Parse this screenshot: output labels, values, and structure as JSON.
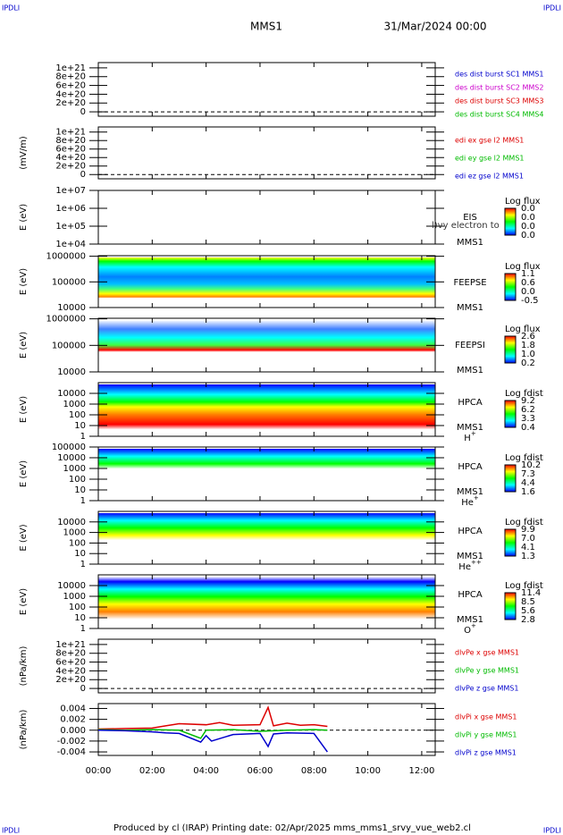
{
  "header": {
    "corner_left": "IPDLI",
    "corner_right": "IPDLI",
    "spacecraft": "MMS1",
    "date": "31/Mar/2024 00:00"
  },
  "footer": {
    "corner_left": "IPDLI",
    "corner_right": "IPDLI",
    "text": "Produced by cl (IRAP)   Printing date: 02/Apr/2025   mms_mms1_srvy_vue_web2.cl"
  },
  "xaxis": {
    "xlim": [
      0,
      12.5
    ],
    "xticks": [
      {
        "value": 0,
        "label": "00:00"
      },
      {
        "value": 2,
        "label": "02:00"
      },
      {
        "value": 4,
        "label": "04:00"
      },
      {
        "value": 6,
        "label": "06:00"
      },
      {
        "value": 8,
        "label": "08:00"
      },
      {
        "value": 10,
        "label": "10:00"
      },
      {
        "value": 12,
        "label": "12:00"
      }
    ]
  },
  "chart_data": [
    {
      "type": "line",
      "ylim": [
        -1e+20,
        1.12e+21
      ],
      "yticks": [
        {
          "value": 1e+21,
          "label": "1e+21"
        },
        {
          "value": 8e+20,
          "label": "8e+20"
        },
        {
          "value": 6e+20,
          "label": "6e+20"
        },
        {
          "value": 4e+20,
          "label": "4e+20"
        },
        {
          "value": 2e+20,
          "label": "2e+20"
        },
        0
      ],
      "legend": [
        {
          "name": "des dist burst SC1 MMS1",
          "color": "#0000cc"
        },
        {
          "name": "des dist burst SC2 MMS2",
          "color": "#cc00cc"
        },
        {
          "name": "des dist burst SC3 MMS3",
          "color": "#dd0000"
        },
        {
          "name": "des dist burst SC4 MMS4",
          "color": "#00bb00"
        }
      ]
    },
    {
      "type": "line",
      "ylabel": "(mV/m)",
      "ylim": [
        -1e+20,
        1.12e+21
      ],
      "yticks": [
        {
          "value": 1e+21,
          "label": "1e+21"
        },
        {
          "value": 8e+20,
          "label": "8e+20"
        },
        {
          "value": 6e+20,
          "label": "6e+20"
        },
        {
          "value": 4e+20,
          "label": "4e+20"
        },
        {
          "value": 2e+20,
          "label": "2e+20"
        },
        0
      ],
      "legend": [
        {
          "name": "edi ex gse l2 MMS1",
          "color": "#dd0000"
        },
        {
          "name": "edi ey gse l2 MMS1",
          "color": "#00bb00"
        },
        {
          "name": "edi ez gse l2 MMS1",
          "color": "#0000cc"
        }
      ]
    },
    {
      "type": "spectrogram",
      "ylabel": "E (eV)",
      "log": true,
      "ylim": [
        10000.0,
        10000000.0
      ],
      "yticks": [
        {
          "value": 10000000.0,
          "label": "1e+07"
        },
        {
          "value": 1000000.0,
          "label": "1e+06"
        },
        {
          "value": 100000.0,
          "label": "1e+05"
        },
        {
          "value": 10000.0,
          "label": "1e+04"
        }
      ],
      "labels": [
        "EIS",
        "MMS1"
      ],
      "overlay": "l)vy electron to",
      "colorbar": {
        "title": "Log flux",
        "labels": [
          "0.0",
          "0.0",
          "0.0",
          "0.0"
        ]
      }
    },
    {
      "type": "spectrogram",
      "ylabel": "E (eV)",
      "log": true,
      "ylim": [
        10000.0,
        1050000.0
      ],
      "yticks": [
        1000000,
        100000,
        10000
      ],
      "labels": [
        "FEEPSE",
        "MMS1"
      ],
      "colorbar": {
        "title": "Log flux",
        "labels": [
          "1.1",
          "0.6",
          "0.0",
          "-0.5"
        ]
      }
    },
    {
      "type": "spectrogram",
      "ylabel": "E (eV)",
      "log": true,
      "ylim": [
        10000.0,
        1050000.0
      ],
      "yticks": [
        1000000,
        100000,
        10000
      ],
      "labels": [
        "FEEPSI",
        "MMS1"
      ],
      "colorbar": {
        "title": "Log flux",
        "labels": [
          "2.6",
          "1.8",
          "1.0",
          "0.2"
        ]
      }
    },
    {
      "type": "spectrogram",
      "ylabel": "E (eV)",
      "log": true,
      "ylim": [
        1,
        100000.0
      ],
      "yticks": [
        10000,
        1000,
        100,
        10,
        1
      ],
      "labels": [
        "HPCA",
        "MMS1",
        "H+"
      ],
      "colorbar": {
        "title": "Log fdist",
        "labels": [
          "9.2",
          "6.2",
          "3.3",
          "0.4"
        ]
      }
    },
    {
      "type": "spectrogram",
      "ylabel": "E (eV)",
      "log": true,
      "ylim": [
        1,
        100000.0
      ],
      "yticks": [
        100000,
        10000,
        1000,
        100,
        10,
        1
      ],
      "labels": [
        "HPCA",
        "MMS1",
        "He+"
      ],
      "colorbar": {
        "title": "Log fdist",
        "labels": [
          "10.2",
          "7.3",
          "4.4",
          "1.6"
        ]
      }
    },
    {
      "type": "spectrogram",
      "ylabel": "E (eV)",
      "log": true,
      "ylim": [
        1,
        100000.0
      ],
      "yticks": [
        10000,
        1000,
        100,
        10,
        1
      ],
      "labels": [
        "HPCA",
        "MMS1",
        "He++"
      ],
      "colorbar": {
        "title": "Log fdist",
        "labels": [
          "9.9",
          "7.0",
          "4.1",
          "1.3"
        ]
      }
    },
    {
      "type": "spectrogram",
      "ylabel": "E (eV)",
      "log": true,
      "ylim": [
        1,
        100000.0
      ],
      "yticks": [
        10000,
        1000,
        100,
        10,
        1
      ],
      "labels": [
        "HPCA",
        "MMS1",
        "O+"
      ],
      "colorbar": {
        "title": "Log fdist",
        "labels": [
          "11.4",
          "8.5",
          "5.6",
          "2.8"
        ]
      }
    },
    {
      "type": "line",
      "ylabel": "(nPa/km)",
      "ylim": [
        -1e+20,
        1.12e+21
      ],
      "yticks": [
        {
          "value": 1e+21,
          "label": "1e+21"
        },
        {
          "value": 8e+20,
          "label": "8e+20"
        },
        {
          "value": 6e+20,
          "label": "6e+20"
        },
        {
          "value": 4e+20,
          "label": "4e+20"
        },
        {
          "value": 2e+20,
          "label": "2e+20"
        },
        0
      ],
      "legend": [
        {
          "name": "dlvPe x gse MMS1",
          "color": "#dd0000"
        },
        {
          "name": "dlvPe y gse MMS1",
          "color": "#00bb00"
        },
        {
          "name": "dlvPe z gse MMS1",
          "color": "#0000cc"
        }
      ]
    },
    {
      "type": "line",
      "ylabel": "(nPa/km)",
      "ylim": [
        -0.00465,
        0.0049
      ],
      "yticks": [
        0.004,
        0.002,
        {
          "value": 0,
          "label": "0.000"
        },
        -0.002,
        -0.004
      ],
      "legend": [
        {
          "name": "dlvPi x gse MMS1",
          "color": "#dd0000"
        },
        {
          "name": "dlvPi y gse MMS1",
          "color": "#00bb00"
        },
        {
          "name": "dlvPi z gse MMS1",
          "color": "#0000cc"
        }
      ],
      "series": [
        {
          "name": "dlvPi x gse MMS1",
          "color": "#dd0000",
          "x": [
            0,
            1,
            2,
            2.5,
            3,
            4,
            4.5,
            5,
            6,
            6.3,
            6.5,
            7,
            7.5,
            8,
            8.5
          ],
          "values": [
            0.0002,
            0.0003,
            0.0004,
            0.0008,
            0.0012,
            0.001,
            0.0014,
            0.0009,
            0.001,
            0.0042,
            0.0008,
            0.0013,
            0.0009,
            0.001,
            0.0007
          ]
        },
        {
          "name": "dlvPi y gse MMS1",
          "color": "#00bb00",
          "x": [
            0,
            1,
            2,
            3,
            3.8,
            4,
            5,
            6,
            7,
            8,
            8.5
          ],
          "values": [
            0.0001,
            0.0,
            0.0001,
            0.0,
            -0.0015,
            0.0,
            0.0001,
            -0.0002,
            0.0,
            0.0001,
            0.0
          ]
        },
        {
          "name": "dlvPi z gse MMS1",
          "color": "#0000cc",
          "x": [
            0,
            1,
            2,
            2.5,
            3,
            3.8,
            4,
            4.2,
            5,
            6,
            6.3,
            6.5,
            7,
            8,
            8.5
          ],
          "values": [
            0.0,
            -0.0001,
            -0.0003,
            -0.0005,
            -0.0006,
            -0.0022,
            -0.001,
            -0.002,
            -0.0008,
            -0.0006,
            -0.003,
            -0.0007,
            -0.0005,
            -0.0006,
            -0.004
          ]
        }
      ]
    }
  ]
}
